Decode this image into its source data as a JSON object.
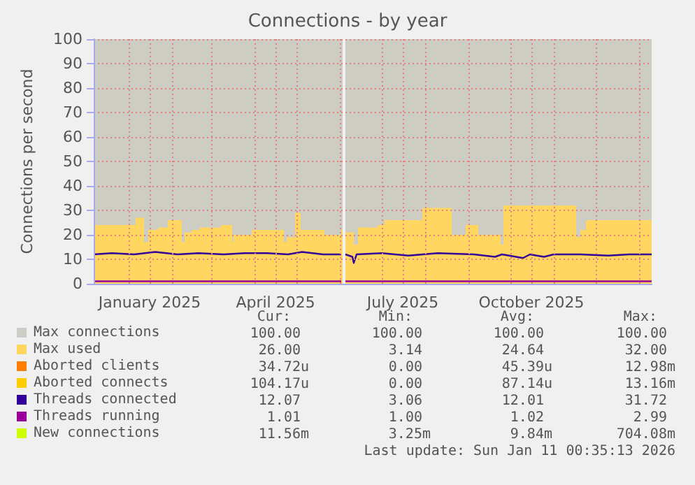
{
  "chart_data": {
    "type": "area",
    "title": "Connections - by year",
    "ylabel": "Connections per second",
    "xlim": [
      "2024-12-07",
      "2026-01-10"
    ],
    "xticks": [
      {
        "value": "2025-01-01",
        "label": null
      },
      {
        "value": "2025-01-16",
        "label": "January 2025"
      },
      {
        "value": "2025-02-01",
        "label": null
      },
      {
        "value": "2025-03-01",
        "label": null
      },
      {
        "value": "2025-04-01",
        "label": null
      },
      {
        "value": "2025-04-16",
        "label": "April 2025"
      },
      {
        "value": "2025-05-01",
        "label": null
      },
      {
        "value": "2025-06-01",
        "label": null
      },
      {
        "value": "2025-07-01",
        "label": null
      },
      {
        "value": "2025-07-16",
        "label": "July 2025"
      },
      {
        "value": "2025-08-01",
        "label": null
      },
      {
        "value": "2025-09-01",
        "label": null
      },
      {
        "value": "2025-10-01",
        "label": null
      },
      {
        "value": "2025-10-16",
        "label": "October 2025"
      },
      {
        "value": "2025-11-01",
        "label": null
      },
      {
        "value": "2025-12-01",
        "label": null
      },
      {
        "value": "2026-01-01",
        "label": null
      }
    ],
    "ylim": [
      0,
      100
    ],
    "yticks": [
      0,
      10,
      20,
      30,
      40,
      50,
      60,
      70,
      80,
      90,
      100
    ],
    "grid": true,
    "legend": "bottom",
    "series": [
      {
        "name": "Max connections",
        "color": "#cdcdc4",
        "x": [
          "2024-12-07",
          "2025-06-02",
          "2025-06-03",
          "2025-06-05",
          "2026-01-10"
        ],
        "values": [
          100,
          100,
          null,
          100,
          100
        ]
      },
      {
        "name": "Max used",
        "color": "#ffd660",
        "x": [
          "2024-12-07",
          "2025-01-04",
          "2025-01-06",
          "2025-01-12",
          "2025-01-15",
          "2025-01-22",
          "2025-01-29",
          "2025-02-08",
          "2025-02-10",
          "2025-02-15",
          "2025-02-21",
          "2025-03-08",
          "2025-03-16",
          "2025-03-17",
          "2025-03-20",
          "2025-03-30",
          "2025-04-22",
          "2025-04-24",
          "2025-04-30",
          "2025-05-04",
          "2025-05-21",
          "2025-06-02",
          "2025-06-03",
          "2025-06-05",
          "2025-06-11",
          "2025-06-14",
          "2025-06-28",
          "2025-07-03",
          "2025-07-30",
          "2025-08-20",
          "2025-08-30",
          "2025-09-08",
          "2025-09-24",
          "2025-09-26",
          "2025-11-17",
          "2025-11-20",
          "2025-11-24",
          "2026-01-10"
        ],
        "values": [
          24,
          24,
          27,
          17,
          22,
          23,
          26,
          17,
          21,
          22,
          23,
          24,
          17,
          20,
          20,
          22,
          17,
          19,
          29,
          22,
          20,
          22,
          null,
          21,
          16,
          23,
          24,
          26,
          31,
          20,
          24,
          20,
          16,
          32,
          19,
          22,
          26,
          26
        ]
      },
      {
        "name": "Aborted clients",
        "type": "line",
        "color": "#ff7f00",
        "values": [
          null
        ]
      },
      {
        "name": "Aborted connects",
        "type": "line",
        "color": "#ffcc00",
        "values": [
          null
        ]
      },
      {
        "name": "Threads connected",
        "type": "line",
        "color": "#330099",
        "x": [
          "2024-12-07",
          "2024-12-20",
          "2025-01-05",
          "2025-01-20",
          "2025-02-05",
          "2025-02-20",
          "2025-03-10",
          "2025-03-25",
          "2025-04-10",
          "2025-04-25",
          "2025-05-05",
          "2025-05-20",
          "2025-06-02",
          "2025-06-03",
          "2025-06-05",
          "2025-06-10",
          "2025-06-11",
          "2025-06-13",
          "2025-07-01",
          "2025-07-20",
          "2025-08-10",
          "2025-09-05",
          "2025-09-20",
          "2025-09-25",
          "2025-10-05",
          "2025-10-10",
          "2025-10-15",
          "2025-10-25",
          "2025-11-01",
          "2025-11-20",
          "2025-12-10",
          "2025-12-25",
          "2026-01-10"
        ],
        "values": [
          12,
          12.5,
          12,
          13,
          12,
          12.5,
          12,
          12.5,
          12.5,
          12,
          13,
          12,
          12,
          null,
          12,
          11,
          8.5,
          12,
          12.5,
          11.5,
          12.5,
          12,
          11,
          12,
          11,
          10.5,
          12,
          11,
          12,
          12,
          11.5,
          12,
          12
        ]
      },
      {
        "name": "Threads running",
        "type": "line",
        "color": "#990099",
        "x": [
          "2024-12-07",
          "2025-06-02",
          "2025-06-03",
          "2025-06-05",
          "2026-01-10"
        ],
        "values": [
          1,
          1,
          null,
          1,
          1
        ]
      },
      {
        "name": "New connections",
        "type": "line",
        "color": "#ccff00",
        "values": [
          null
        ]
      }
    ],
    "annotations": [
      "Cur:",
      "Min:",
      "Avg:",
      "Max:",
      "100.00",
      "100.00",
      "100.00",
      "100.00",
      "26.00",
      "3.14",
      "24.64",
      "32.00",
      "34.72u",
      "0.00",
      "45.39u",
      "12.98m",
      "104.17u",
      "0.00",
      "87.14u",
      "13.16m",
      "12.07",
      "3.06",
      "12.01",
      "31.72",
      "1.01",
      "1.00",
      "1.02",
      "2.99",
      "11.56m",
      "3.25m",
      "9.84m",
      "704.08m",
      "Last update: Sun Jan 11 00:35:13 2026"
    ]
  }
}
